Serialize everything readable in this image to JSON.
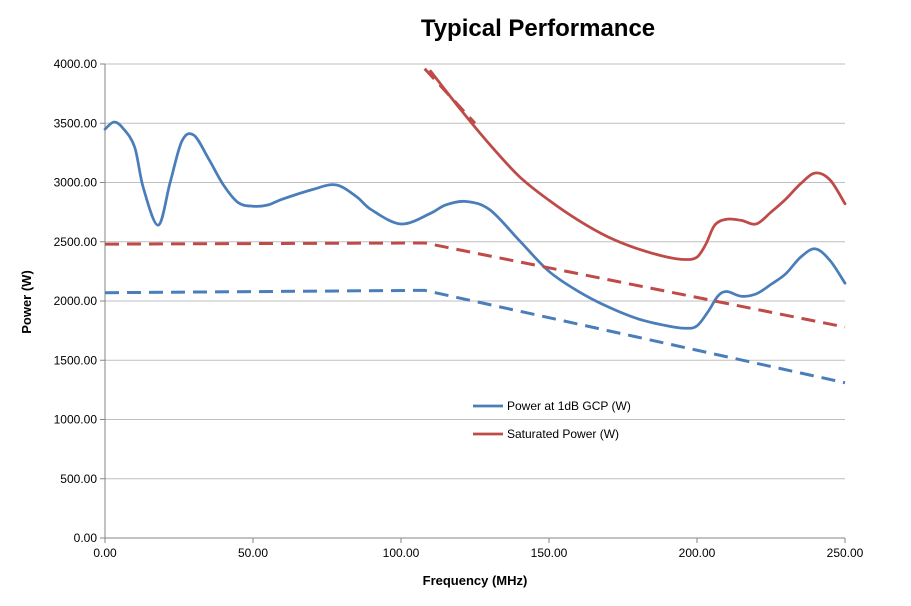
{
  "chart_data": {
    "type": "line",
    "title": "Typical Performance",
    "xlabel": "Frequency (MHz)",
    "ylabel": "Power (W)",
    "xlim": [
      0,
      250
    ],
    "ylim": [
      0,
      4000
    ],
    "grid": true,
    "legend_position": "center-right",
    "x_ticks": [
      {
        "value": 0,
        "label": "0.00"
      },
      {
        "value": 50,
        "label": "50.00"
      },
      {
        "value": 100,
        "label": "100.00"
      },
      {
        "value": 150,
        "label": "150.00"
      },
      {
        "value": 200,
        "label": "200.00"
      },
      {
        "value": 250,
        "label": "250.00"
      }
    ],
    "y_ticks": [
      {
        "value": 0,
        "label": "0.00"
      },
      {
        "value": 500,
        "label": "500.00"
      },
      {
        "value": 1000,
        "label": "1000.00"
      },
      {
        "value": 1500,
        "label": "1500.00"
      },
      {
        "value": 2000,
        "label": "2000.00"
      },
      {
        "value": 2500,
        "label": "2500.00"
      },
      {
        "value": 3000,
        "label": "3000.00"
      },
      {
        "value": 3500,
        "label": "3500.00"
      },
      {
        "value": 4000,
        "label": "4000.00"
      }
    ],
    "series": [
      {
        "name": "Power at 1dB GCP (W)",
        "color": "#4a7ebb",
        "style": "solid",
        "in_legend": true,
        "x": [
          0,
          3,
          6,
          10,
          13,
          18,
          22,
          26,
          30,
          35,
          40,
          45,
          50,
          55,
          60,
          70,
          78,
          85,
          90,
          100,
          110,
          115,
          122,
          130,
          140,
          150,
          160,
          170,
          180,
          190,
          196,
          200,
          204,
          207,
          210,
          215,
          220,
          225,
          230,
          235,
          240,
          245,
          250
        ],
        "y": [
          3450,
          3510,
          3460,
          3300,
          2950,
          2640,
          3000,
          3350,
          3400,
          3200,
          2980,
          2830,
          2800,
          2810,
          2860,
          2940,
          2980,
          2880,
          2770,
          2650,
          2740,
          2810,
          2840,
          2770,
          2510,
          2250,
          2080,
          1950,
          1850,
          1790,
          1770,
          1790,
          1920,
          2040,
          2080,
          2040,
          2060,
          2140,
          2230,
          2370,
          2440,
          2340,
          2150
        ]
      },
      {
        "name": "Saturated Power (W)",
        "color": "#be4b48",
        "style": "solid",
        "in_legend": true,
        "x": [
          110,
          120,
          130,
          140,
          150,
          160,
          170,
          180,
          190,
          196,
          200,
          203,
          206,
          210,
          215,
          220,
          225,
          230,
          235,
          240,
          245,
          250
        ],
        "y": [
          3940,
          3620,
          3320,
          3050,
          2850,
          2680,
          2540,
          2440,
          2370,
          2350,
          2370,
          2480,
          2640,
          2690,
          2680,
          2650,
          2750,
          2860,
          2990,
          3080,
          3020,
          2820
        ]
      },
      {
        "name": "",
        "color": "#4a7ebb",
        "style": "dashed",
        "in_legend": false,
        "x": [
          0,
          108,
          250
        ],
        "y": [
          2070,
          2090,
          1310
        ]
      },
      {
        "name": "",
        "color": "#be4b48",
        "style": "dashed",
        "in_legend": false,
        "x": [
          0,
          108,
          250
        ],
        "y": [
          2480,
          2490,
          1780
        ]
      },
      {
        "name": "",
        "color": "#be4b48",
        "style": "dashed",
        "in_legend": false,
        "x": [
          108,
          125
        ],
        "y": [
          3960,
          3500
        ]
      }
    ]
  }
}
